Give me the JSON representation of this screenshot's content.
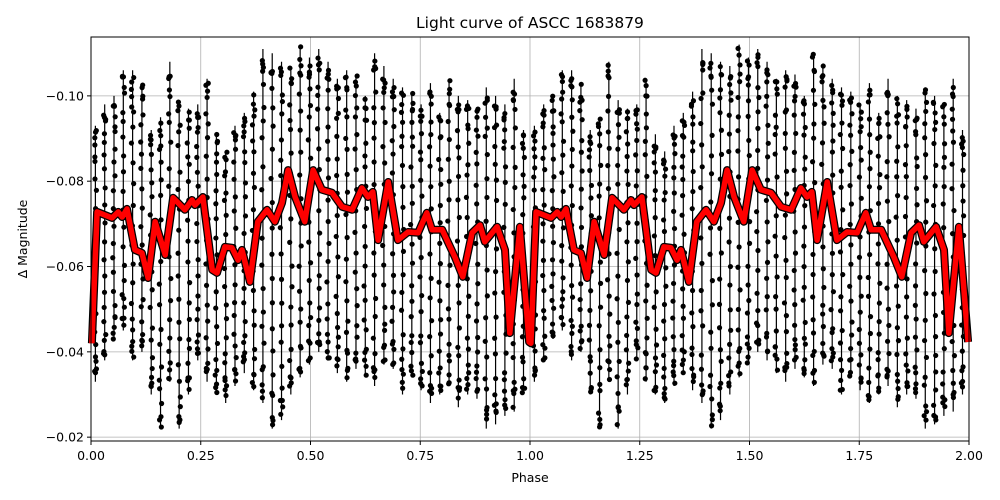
{
  "chart_data": {
    "type": "scatter",
    "title": "Light curve of ASCC 1683879",
    "xlabel": "Phase",
    "ylabel": "Δ Magnitude",
    "xlim": [
      0,
      2
    ],
    "ylim": [
      -0.0191,
      -0.1138
    ],
    "y_inverted": true,
    "grid": true,
    "xticks": [
      0,
      0.25,
      0.5,
      0.75,
      1.0,
      1.25,
      1.5,
      1.75,
      2.0
    ],
    "xtick_labels": [
      "0.00",
      "0.25",
      "0.50",
      "0.75",
      "1.00",
      "1.25",
      "1.50",
      "1.75",
      "2.00"
    ],
    "yticks": [
      -0.1,
      -0.08,
      -0.06,
      -0.04,
      -0.02
    ],
    "ytick_labels": [
      "−0.10",
      "−0.08",
      "−0.06",
      "−0.04",
      "−0.02"
    ],
    "colors": {
      "points": "#000000",
      "binned_curve": "#ff0000",
      "grid": "#b0b0b0"
    },
    "observations": {
      "description_of_marks": "black points with vertical error bars, folded and repeated over two cycles",
      "phase_start": 0.01,
      "phase_step": 0.0212,
      "upper_extent": [
        -0.093,
        -0.098,
        -0.1,
        -0.106,
        -0.106,
        -0.103,
        -0.092,
        -0.095,
        -0.108,
        -0.099,
        -0.097,
        -0.098,
        -0.104,
        -0.091,
        -0.087,
        -0.093,
        -0.096,
        -0.101,
        -0.111,
        -0.11,
        -0.108,
        -0.107,
        -0.112,
        -0.109,
        -0.111,
        -0.108,
        -0.104,
        -0.106,
        -0.105,
        -0.1,
        -0.11,
        -0.107,
        -0.104,
        -0.102,
        -0.101,
        -0.098,
        -0.103,
        -0.096,
        -0.104,
        -0.1,
        -0.099,
        -0.097,
        -0.102,
        -0.1,
        -0.098,
        -0.104,
        -0.092
      ],
      "lower_extent": [
        -0.033,
        -0.038,
        -0.043,
        -0.045,
        -0.038,
        -0.04,
        -0.03,
        -0.022,
        -0.033,
        -0.022,
        -0.03,
        -0.038,
        -0.033,
        -0.03,
        -0.028,
        -0.032,
        -0.035,
        -0.031,
        -0.028,
        -0.022,
        -0.024,
        -0.03,
        -0.034,
        -0.037,
        -0.04,
        -0.038,
        -0.035,
        -0.033,
        -0.036,
        -0.034,
        -0.032,
        -0.037,
        -0.036,
        -0.03,
        -0.034,
        -0.031,
        -0.028,
        -0.03,
        -0.032,
        -0.027,
        -0.03,
        -0.029,
        -0.022,
        -0.023,
        -0.025,
        -0.026,
        -0.03
      ]
    },
    "binned_curve": {
      "phase": [
        0.002,
        0.014,
        0.048,
        0.062,
        0.071,
        0.082,
        0.1,
        0.116,
        0.13,
        0.146,
        0.169,
        0.187,
        0.214,
        0.23,
        0.237,
        0.255,
        0.276,
        0.287,
        0.305,
        0.321,
        0.335,
        0.344,
        0.362,
        0.38,
        0.401,
        0.419,
        0.435,
        0.449,
        0.465,
        0.487,
        0.506,
        0.526,
        0.549,
        0.572,
        0.595,
        0.617,
        0.631,
        0.642,
        0.654,
        0.677,
        0.699,
        0.722,
        0.745,
        0.765,
        0.777,
        0.8,
        0.829,
        0.847,
        0.868,
        0.886,
        0.897,
        0.925,
        0.943,
        0.954,
        0.977,
        0.998
      ],
      "magnitude": [
        -0.042,
        -0.0728,
        -0.0714,
        -0.0728,
        -0.0716,
        -0.0735,
        -0.0639,
        -0.0632,
        -0.0573,
        -0.0705,
        -0.0627,
        -0.0761,
        -0.0733,
        -0.0756,
        -0.0744,
        -0.0763,
        -0.0592,
        -0.0585,
        -0.0646,
        -0.0644,
        -0.0615,
        -0.0639,
        -0.0564,
        -0.0705,
        -0.0733,
        -0.0705,
        -0.0749,
        -0.0826,
        -0.0763,
        -0.0705,
        -0.0826,
        -0.078,
        -0.0773,
        -0.074,
        -0.0733,
        -0.0784,
        -0.0763,
        -0.0775,
        -0.0662,
        -0.0798,
        -0.0662,
        -0.0681,
        -0.0679,
        -0.0726,
        -0.0686,
        -0.0686,
        -0.0622,
        -0.0576,
        -0.0679,
        -0.0697,
        -0.0658,
        -0.0693,
        -0.0639,
        -0.0444,
        -0.0693,
        -0.0423
      ]
    }
  }
}
